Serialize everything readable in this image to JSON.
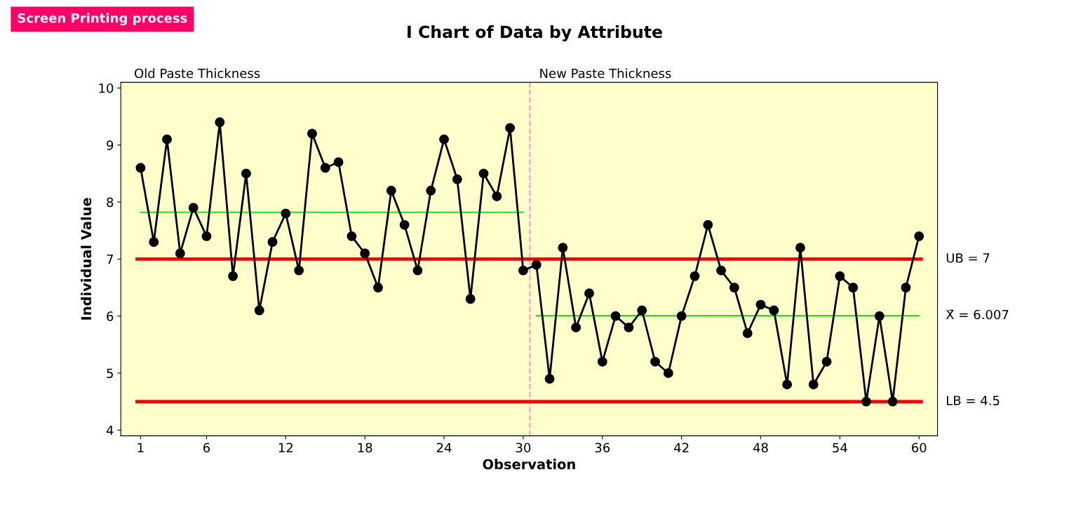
{
  "chart_data": {
    "type": "line",
    "title": "I Chart of Data by Attribute",
    "subtitle": "Screen Printing process",
    "xlabel": "Observation",
    "ylabel": "Individual Value",
    "annotations": [
      "Old Paste Thickness",
      "New Paste Thickness"
    ],
    "xlim": [
      -0.5,
      61.4
    ],
    "ylim": [
      3.9,
      10.1
    ],
    "xticks": [
      1,
      6,
      12,
      18,
      24,
      30,
      36,
      42,
      48,
      54,
      60
    ],
    "yticks": [
      4,
      5,
      6,
      7,
      8,
      9,
      10
    ],
    "grid": false,
    "legend": false,
    "series": [
      {
        "color": "#00dd00",
        "marker": "none",
        "x": [
          1,
          30
        ],
        "values": [
          7.82,
          7.82
        ]
      },
      {
        "name": "X̄ = 6.007",
        "color": "#00dd00",
        "marker": "none",
        "x": [
          31,
          60
        ],
        "values": [
          6.007,
          6.007
        ]
      },
      {
        "color": "#000000",
        "marker": "circle",
        "x": [
          1,
          2,
          3,
          4,
          5,
          6,
          7,
          8,
          9,
          10,
          11,
          12,
          13,
          14,
          15,
          16,
          17,
          18,
          19,
          20,
          21,
          22,
          23,
          24,
          25,
          26,
          27,
          28,
          29,
          30,
          31,
          32,
          33,
          34,
          35,
          36,
          37,
          38,
          39,
          40,
          41,
          42,
          43,
          44,
          45,
          46,
          47,
          48,
          49,
          50,
          51,
          52,
          53,
          54,
          55,
          56,
          57,
          58,
          59,
          60
        ],
        "values": [
          8.6,
          7.3,
          9.1,
          7.1,
          7.9,
          7.4,
          9.4,
          6.7,
          8.5,
          6.1,
          7.3,
          7.8,
          6.8,
          9.2,
          8.6,
          8.7,
          7.4,
          7.1,
          6.5,
          8.2,
          7.6,
          6.8,
          8.2,
          9.1,
          8.4,
          6.3,
          8.5,
          8.1,
          9.3,
          6.8,
          6.9,
          4.9,
          7.2,
          5.8,
          6.4,
          5.2,
          6.0,
          5.8,
          6.1,
          5.2,
          5.0,
          6.0,
          6.7,
          7.6,
          6.8,
          6.5,
          5.7,
          6.2,
          6.1,
          4.8,
          7.2,
          4.8,
          5.2,
          6.7,
          6.5,
          4.5,
          6.0,
          4.5,
          6.5,
          7.4
        ]
      }
    ],
    "ref_lines": [
      {
        "axis": "y",
        "value": 7,
        "label": "UB = 7",
        "color": "#ff0000",
        "line_style": "solid"
      },
      {
        "axis": "y",
        "value": 4.5,
        "label": "LB = 4.5",
        "color": "#ff0000",
        "line_style": "solid"
      },
      {
        "axis": "x",
        "value": 30.5,
        "color": "#ff99cc",
        "line_style": "dashed"
      }
    ]
  }
}
